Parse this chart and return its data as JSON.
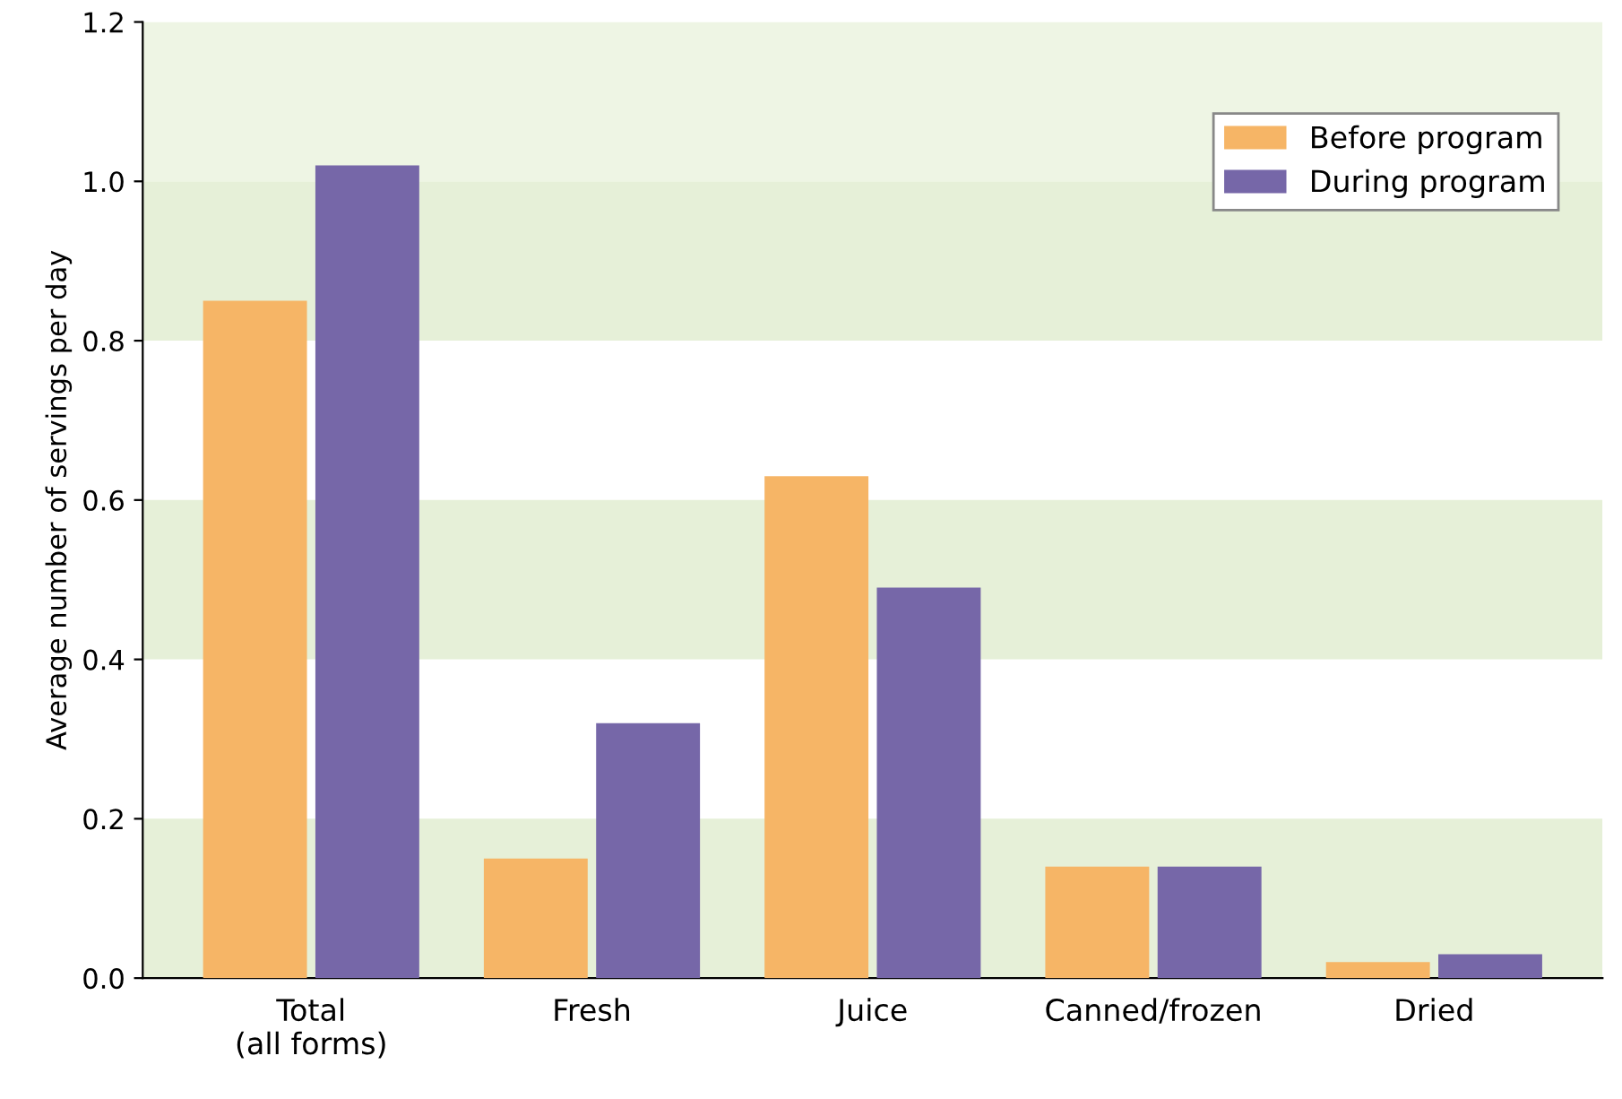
{
  "chart_data": {
    "type": "bar",
    "ylabel": "Average number of servings per day",
    "categories": [
      "Total\n(all forms)",
      "Fresh",
      "Juice",
      "Canned/frozen",
      "Dried"
    ],
    "series": [
      {
        "name": "Before program",
        "color": "#f6b566",
        "values": [
          0.85,
          0.15,
          0.63,
          0.14,
          0.02
        ]
      },
      {
        "name": "During program",
        "color": "#7667a8",
        "values": [
          1.02,
          0.32,
          0.49,
          0.14,
          0.03
        ]
      }
    ],
    "ylim": [
      0,
      1.2
    ],
    "yticks": [
      {
        "value": 0,
        "label": "0.0"
      },
      {
        "value": 0.2,
        "label": "0.2"
      },
      {
        "value": 0.4,
        "label": "0.4"
      },
      {
        "value": 0.6,
        "label": "0.6"
      },
      {
        "value": 0.8,
        "label": "0.8"
      },
      {
        "value": 1.0,
        "label": "1.0"
      },
      {
        "value": 1.2,
        "label": "1.2"
      }
    ],
    "bands": [
      {
        "axis": "y",
        "from": 0,
        "to": 0.2,
        "color": "#e6f0d8"
      },
      {
        "axis": "y",
        "from": 0.4,
        "to": 0.6,
        "color": "#e6f0d8"
      },
      {
        "axis": "y",
        "from": 0.8,
        "to": 1.0,
        "color": "#e6f0d8"
      },
      {
        "axis": "y",
        "from": 1.0,
        "to": 1.2,
        "color": "#eef5e4"
      }
    ],
    "grid": false,
    "legend": "top right"
  }
}
